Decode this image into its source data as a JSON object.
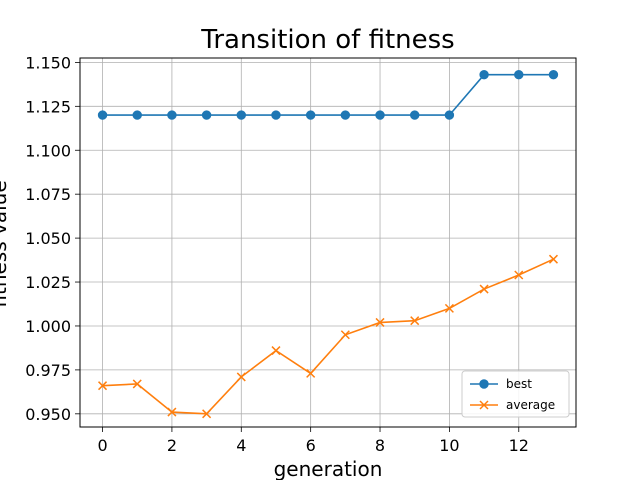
{
  "chart_data": {
    "type": "line",
    "title": "Transition of fitness",
    "xlabel": "generation",
    "ylabel": "fitness value",
    "xlim": [
      -0.65,
      13.65
    ],
    "ylim": [
      0.9425,
      1.1525
    ],
    "xticks": [
      0,
      2,
      4,
      6,
      8,
      10,
      12
    ],
    "yticks": [
      0.95,
      0.975,
      1.0,
      1.025,
      1.05,
      1.075,
      1.1,
      1.125,
      1.15
    ],
    "ytick_labels": [
      "0.950",
      "0.975",
      "1.000",
      "1.025",
      "1.050",
      "1.075",
      "1.100",
      "1.125",
      "1.150"
    ],
    "grid": true,
    "legend": "lower-right",
    "x": [
      0,
      1,
      2,
      3,
      4,
      5,
      6,
      7,
      8,
      9,
      10,
      11,
      12,
      13
    ],
    "series": [
      {
        "name": "best",
        "marker": "circle",
        "color": "#1f77b4",
        "values": [
          1.12,
          1.12,
          1.12,
          1.12,
          1.12,
          1.12,
          1.12,
          1.12,
          1.12,
          1.12,
          1.12,
          1.143,
          1.143,
          1.143
        ]
      },
      {
        "name": "average",
        "marker": "x",
        "color": "#ff7f0e",
        "values": [
          0.966,
          0.967,
          0.951,
          0.95,
          0.971,
          0.986,
          0.973,
          0.995,
          1.002,
          1.003,
          1.01,
          1.021,
          1.029,
          1.038
        ]
      }
    ]
  }
}
